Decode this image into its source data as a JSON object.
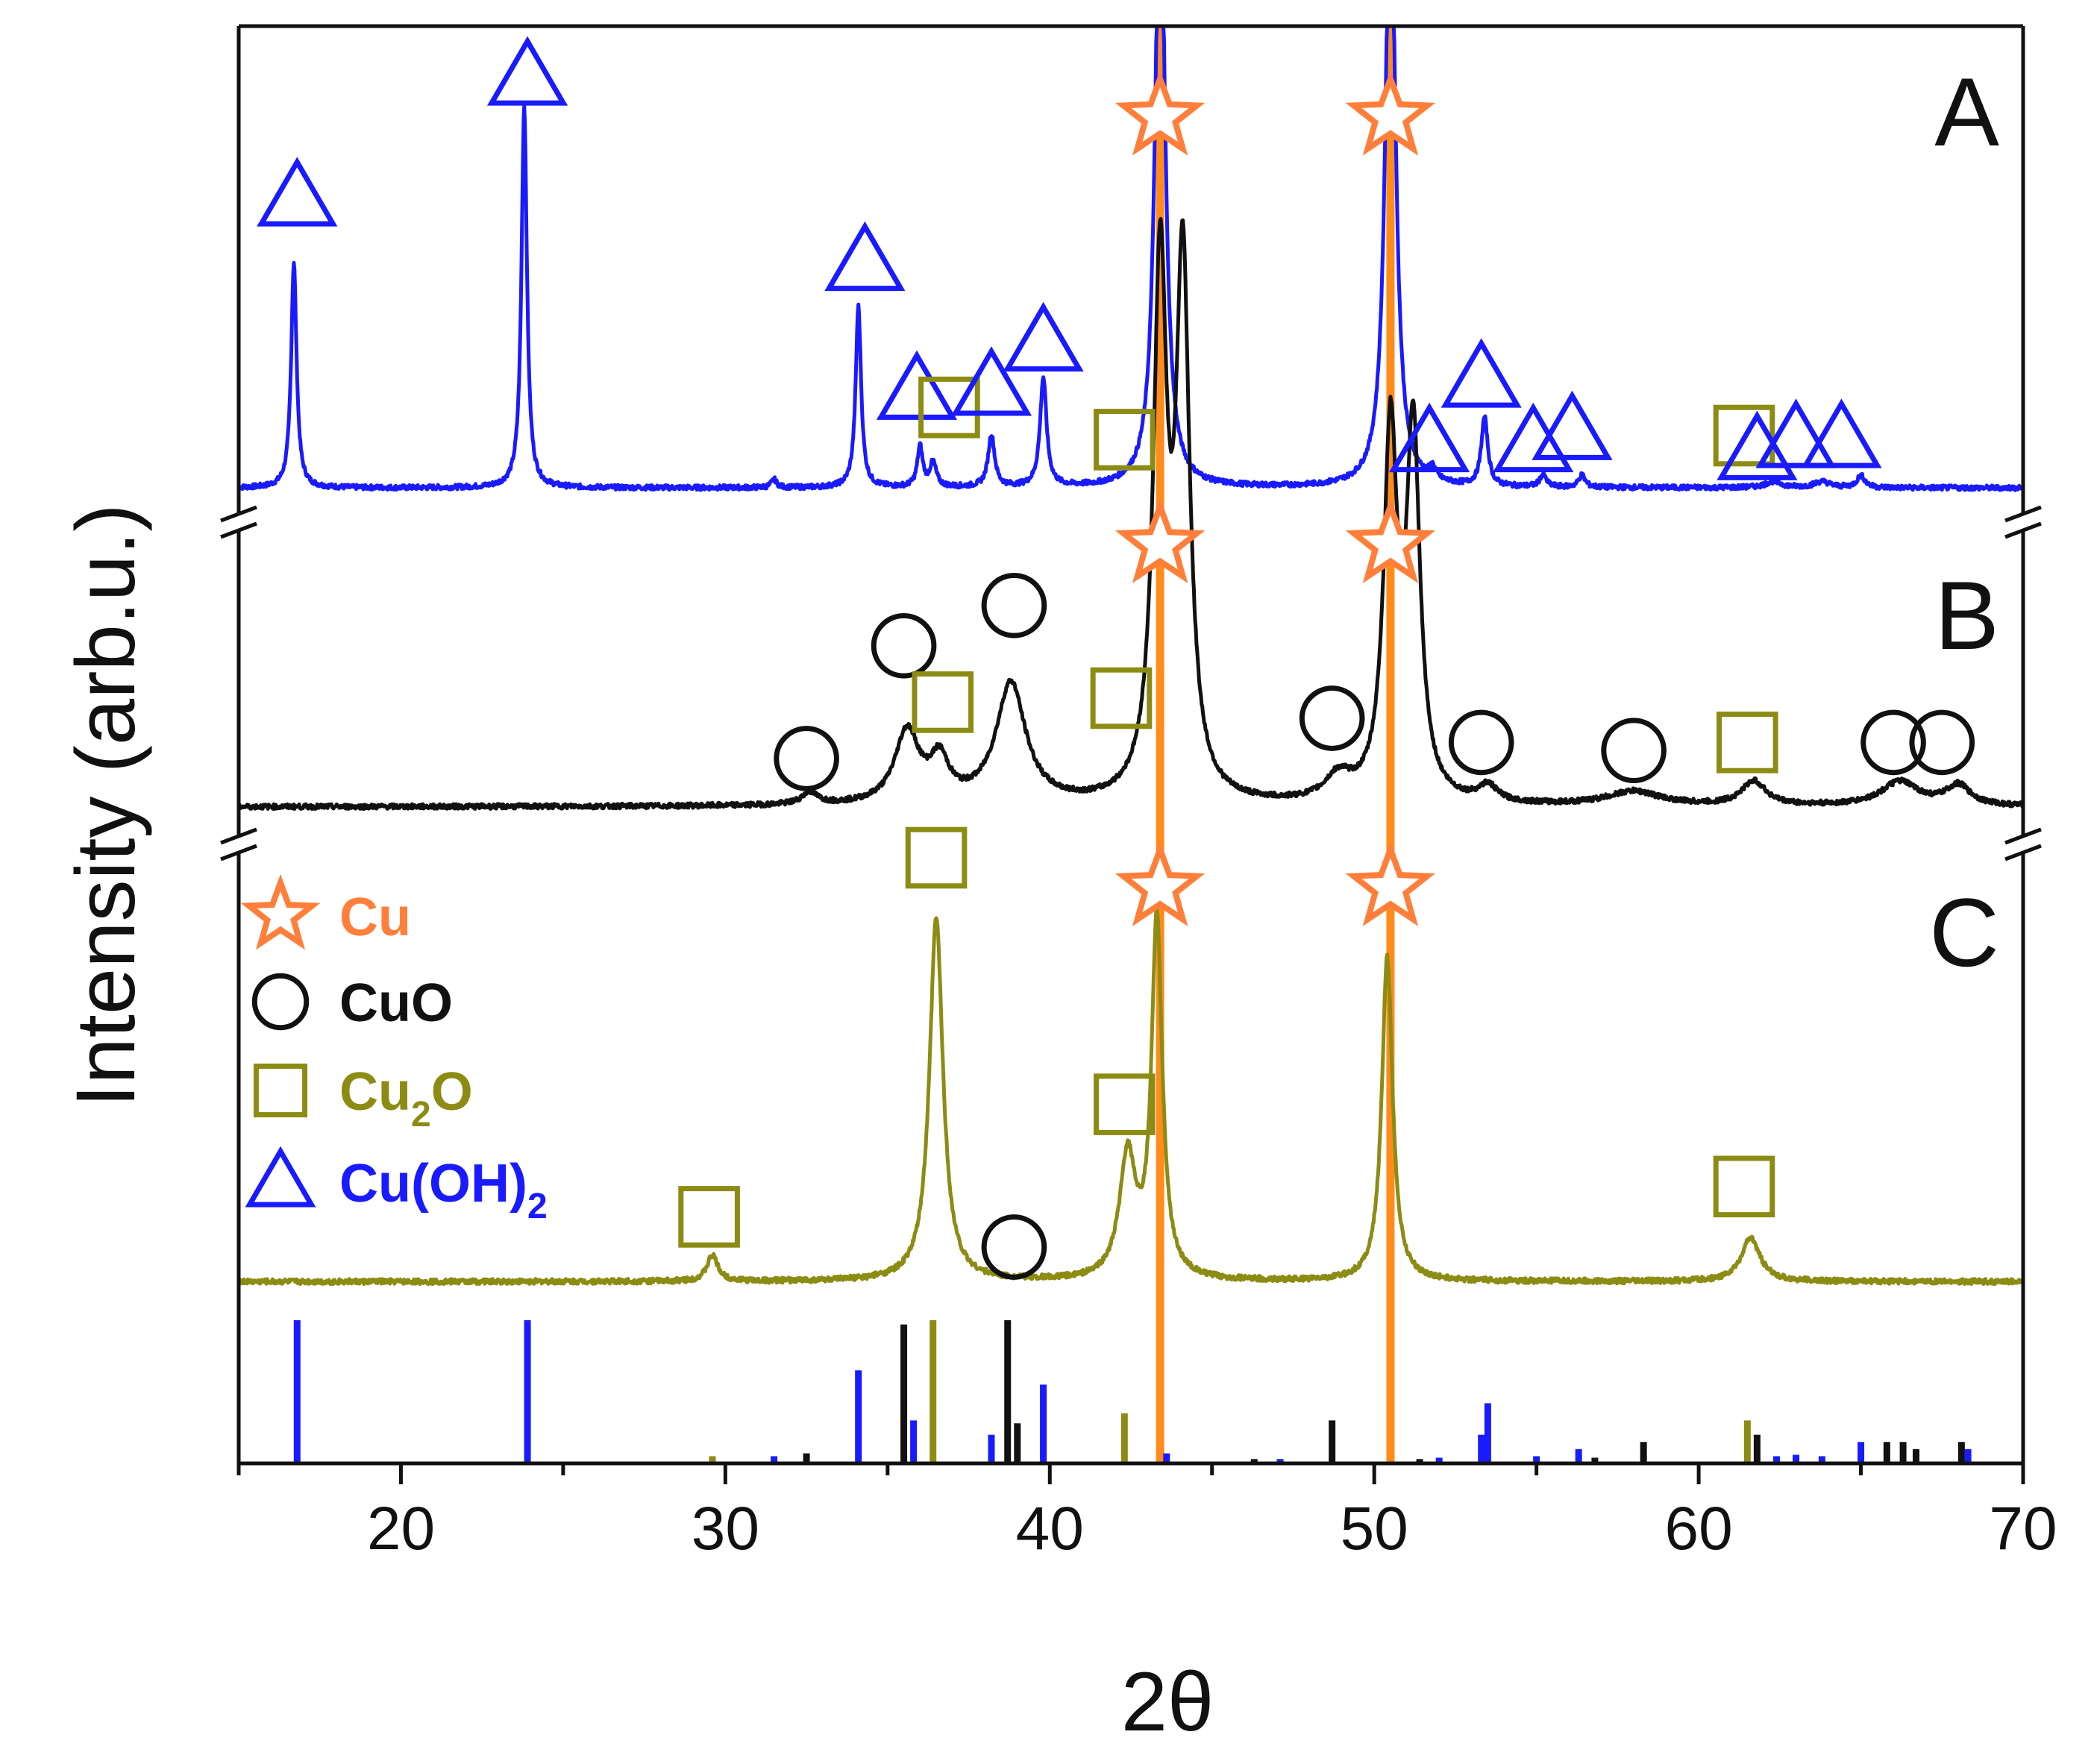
{
  "chart_data": {
    "type": "line",
    "title": "",
    "xlabel": "2θ",
    "ylabel": "Intensity (arb.u.)",
    "xlim": [
      15,
      70
    ],
    "xticks": [
      20,
      30,
      40,
      50,
      60,
      70
    ],
    "panel_labels": [
      "A",
      "B",
      "C"
    ],
    "colors": {
      "A": "#1a1aff",
      "B": "#111111",
      "C": "#8c8c14",
      "Cu": "#ff8c1a",
      "star": "#ff7f3a"
    },
    "legend": [
      {
        "phase": "Cu",
        "label": "Cu",
        "sub": "",
        "symbol": "star",
        "color": "#ff7f3a"
      },
      {
        "phase": "CuO",
        "label": "CuO",
        "sub": "",
        "symbol": "circle",
        "color": "#111111"
      },
      {
        "phase": "Cu2O",
        "label": "Cu",
        "sub": "2",
        "suffix": "O",
        "symbol": "square",
        "color": "#8c8c14"
      },
      {
        "phase": "Cu(OH)2",
        "label": "Cu(OH)",
        "sub": "2",
        "suffix": "",
        "symbol": "triangle",
        "color": "#1a1aff"
      }
    ],
    "cu_reference_lines": [
      43.4,
      50.5
    ],
    "series": [
      {
        "name": "A",
        "color": "#1a1aff",
        "baseline": 0.02,
        "peaks": [
          {
            "x": 16.7,
            "h": 0.56,
            "w": 0.1
          },
          {
            "x": 23.8,
            "h": 0.95,
            "w": 0.1
          },
          {
            "x": 31.5,
            "h": 0.02,
            "w": 0.1
          },
          {
            "x": 34.1,
            "h": 0.45,
            "w": 0.1
          },
          {
            "x": 36.0,
            "h": 0.1,
            "w": 0.1
          },
          {
            "x": 36.4,
            "h": 0.06,
            "w": 0.12
          },
          {
            "x": 38.2,
            "h": 0.13,
            "w": 0.12
          },
          {
            "x": 39.8,
            "h": 0.27,
            "w": 0.12
          },
          {
            "x": 43.4,
            "h": 1.6,
            "w": 0.18
          },
          {
            "x": 50.5,
            "h": 1.6,
            "w": 0.18
          },
          {
            "x": 51.8,
            "h": 0.03,
            "w": 0.12
          },
          {
            "x": 53.4,
            "h": 0.17,
            "w": 0.12
          },
          {
            "x": 55.2,
            "h": 0.03,
            "w": 0.12
          },
          {
            "x": 56.4,
            "h": 0.03,
            "w": 0.12
          },
          {
            "x": 62.3,
            "h": 0.015,
            "w": 0.3
          },
          {
            "x": 63.8,
            "h": 0.015,
            "w": 0.3
          },
          {
            "x": 65.0,
            "h": 0.03,
            "w": 0.15
          }
        ],
        "markers": [
          {
            "symbol": "triangle",
            "x": 16.8,
            "y": 0.74
          },
          {
            "symbol": "triangle",
            "x": 23.9,
            "y": 1.04
          },
          {
            "symbol": "triangle",
            "x": 34.3,
            "y": 0.58
          },
          {
            "symbol": "triangle",
            "x": 35.9,
            "y": 0.26
          },
          {
            "symbol": "square",
            "x": 36.9,
            "y": 0.22
          },
          {
            "symbol": "triangle",
            "x": 38.2,
            "y": 0.27
          },
          {
            "symbol": "triangle",
            "x": 39.8,
            "y": 0.38
          },
          {
            "symbol": "square",
            "x": 42.3,
            "y": 0.14
          },
          {
            "symbol": "star",
            "x": 43.4,
            "y": 0.94
          },
          {
            "symbol": "star",
            "x": 50.5,
            "y": 0.94
          },
          {
            "symbol": "triangle",
            "x": 51.7,
            "y": 0.13
          },
          {
            "symbol": "triangle",
            "x": 53.3,
            "y": 0.29
          },
          {
            "symbol": "triangle",
            "x": 54.9,
            "y": 0.13
          },
          {
            "symbol": "triangle",
            "x": 56.1,
            "y": 0.16
          },
          {
            "symbol": "square",
            "x": 61.4,
            "y": 0.15
          },
          {
            "symbol": "triangle",
            "x": 61.8,
            "y": 0.11
          },
          {
            "symbol": "triangle",
            "x": 63.0,
            "y": 0.14
          },
          {
            "symbol": "triangle",
            "x": 64.4,
            "y": 0.14
          }
        ]
      },
      {
        "name": "B",
        "color": "#111111",
        "baseline": 0.03,
        "peaks": [
          {
            "x": 32.6,
            "h": 0.03,
            "w": 0.3
          },
          {
            "x": 35.6,
            "h": 0.18,
            "w": 0.45
          },
          {
            "x": 36.6,
            "h": 0.1,
            "w": 0.35
          },
          {
            "x": 38.8,
            "h": 0.3,
            "w": 0.55
          },
          {
            "x": 43.4,
            "h": 1.3,
            "w": 0.25
          },
          {
            "x": 44.1,
            "h": 1.3,
            "w": 0.25
          },
          {
            "x": 48.9,
            "h": 0.06,
            "w": 0.5
          },
          {
            "x": 50.5,
            "h": 0.9,
            "w": 0.25
          },
          {
            "x": 51.2,
            "h": 0.9,
            "w": 0.25
          },
          {
            "x": 53.5,
            "h": 0.04,
            "w": 0.35
          },
          {
            "x": 58.0,
            "h": 0.035,
            "w": 1.0
          },
          {
            "x": 61.7,
            "h": 0.06,
            "w": 0.45
          },
          {
            "x": 66.2,
            "h": 0.06,
            "w": 0.7
          },
          {
            "x": 68.0,
            "h": 0.05,
            "w": 0.45
          }
        ],
        "markers": [
          {
            "symbol": "circle",
            "x": 32.5,
            "y": 0.15
          },
          {
            "symbol": "circle",
            "x": 35.5,
            "y": 0.43
          },
          {
            "symbol": "square",
            "x": 36.7,
            "y": 0.29
          },
          {
            "symbol": "circle",
            "x": 38.9,
            "y": 0.53
          },
          {
            "symbol": "square",
            "x": 42.2,
            "y": 0.3
          },
          {
            "symbol": "star",
            "x": 43.4,
            "y": 0.68
          },
          {
            "symbol": "circle",
            "x": 48.7,
            "y": 0.25
          },
          {
            "symbol": "star",
            "x": 50.5,
            "y": 0.68
          },
          {
            "symbol": "circle",
            "x": 53.3,
            "y": 0.19
          },
          {
            "symbol": "circle",
            "x": 58.0,
            "y": 0.17
          },
          {
            "symbol": "square",
            "x": 61.5,
            "y": 0.19
          },
          {
            "symbol": "circle",
            "x": 66.0,
            "y": 0.19
          },
          {
            "symbol": "circle",
            "x": 67.5,
            "y": 0.19
          }
        ]
      },
      {
        "name": "C",
        "color": "#8c8c14",
        "baseline": 0.02,
        "peaks": [
          {
            "x": 29.6,
            "h": 0.06,
            "w": 0.2
          },
          {
            "x": 36.5,
            "h": 0.84,
            "w": 0.25
          },
          {
            "x": 42.4,
            "h": 0.28,
            "w": 0.3
          },
          {
            "x": 43.3,
            "h": 0.83,
            "w": 0.2
          },
          {
            "x": 50.4,
            "h": 0.75,
            "w": 0.2
          },
          {
            "x": 61.6,
            "h": 0.1,
            "w": 0.35
          }
        ],
        "markers": [
          {
            "symbol": "square",
            "x": 29.5,
            "y": 0.17
          },
          {
            "symbol": "square",
            "x": 36.5,
            "y": 1.0
          },
          {
            "symbol": "circle",
            "x": 38.9,
            "y": 0.1
          },
          {
            "symbol": "square",
            "x": 42.3,
            "y": 0.43
          },
          {
            "symbol": "star",
            "x": 43.4,
            "y": 0.93
          },
          {
            "symbol": "star",
            "x": 50.5,
            "y": 0.93
          },
          {
            "symbol": "square",
            "x": 61.4,
            "y": 0.24
          }
        ]
      }
    ],
    "reference_sticks": [
      {
        "x": 16.8,
        "h": 1.0,
        "phase": "Cu(OH)2"
      },
      {
        "x": 23.9,
        "h": 1.0,
        "phase": "Cu(OH)2"
      },
      {
        "x": 29.6,
        "h": 0.05,
        "phase": "Cu2O"
      },
      {
        "x": 31.5,
        "h": 0.05,
        "phase": "Cu(OH)2"
      },
      {
        "x": 32.5,
        "h": 0.07,
        "phase": "CuO"
      },
      {
        "x": 34.1,
        "h": 0.65,
        "phase": "Cu(OH)2"
      },
      {
        "x": 35.5,
        "h": 0.97,
        "phase": "CuO"
      },
      {
        "x": 35.8,
        "h": 0.3,
        "phase": "Cu(OH)2"
      },
      {
        "x": 36.4,
        "h": 1.0,
        "phase": "Cu2O"
      },
      {
        "x": 38.2,
        "h": 0.2,
        "phase": "Cu(OH)2"
      },
      {
        "x": 38.7,
        "h": 1.0,
        "phase": "CuO"
      },
      {
        "x": 39.0,
        "h": 0.28,
        "phase": "CuO"
      },
      {
        "x": 39.8,
        "h": 0.55,
        "phase": "Cu(OH)2"
      },
      {
        "x": 42.3,
        "h": 0.35,
        "phase": "Cu2O"
      },
      {
        "x": 43.6,
        "h": 0.07,
        "phase": "Cu(OH)2"
      },
      {
        "x": 46.3,
        "h": 0.03,
        "phase": "CuO"
      },
      {
        "x": 47.1,
        "h": 0.03,
        "phase": "Cu(OH)2"
      },
      {
        "x": 48.7,
        "h": 0.3,
        "phase": "CuO"
      },
      {
        "x": 51.4,
        "h": 0.03,
        "phase": "CuO"
      },
      {
        "x": 52.0,
        "h": 0.04,
        "phase": "Cu(OH)2"
      },
      {
        "x": 53.3,
        "h": 0.2,
        "phase": "Cu(OH)2"
      },
      {
        "x": 53.5,
        "h": 0.42,
        "phase": "Cu(OH)2"
      },
      {
        "x": 55.0,
        "h": 0.05,
        "phase": "Cu(OH)2"
      },
      {
        "x": 56.3,
        "h": 0.1,
        "phase": "Cu(OH)2"
      },
      {
        "x": 56.8,
        "h": 0.04,
        "phase": "CuO"
      },
      {
        "x": 58.3,
        "h": 0.15,
        "phase": "CuO"
      },
      {
        "x": 61.5,
        "h": 0.3,
        "phase": "Cu2O"
      },
      {
        "x": 61.8,
        "h": 0.2,
        "phase": "CuO"
      },
      {
        "x": 62.4,
        "h": 0.05,
        "phase": "Cu(OH)2"
      },
      {
        "x": 63.0,
        "h": 0.06,
        "phase": "Cu(OH)2"
      },
      {
        "x": 63.8,
        "h": 0.05,
        "phase": "Cu(OH)2"
      },
      {
        "x": 65.0,
        "h": 0.15,
        "phase": "Cu(OH)2"
      },
      {
        "x": 65.8,
        "h": 0.15,
        "phase": "CuO"
      },
      {
        "x": 66.3,
        "h": 0.15,
        "phase": "CuO"
      },
      {
        "x": 66.7,
        "h": 0.1,
        "phase": "CuO"
      },
      {
        "x": 68.1,
        "h": 0.15,
        "phase": "CuO"
      },
      {
        "x": 68.3,
        "h": 0.1,
        "phase": "Cu(OH)2"
      }
    ]
  }
}
